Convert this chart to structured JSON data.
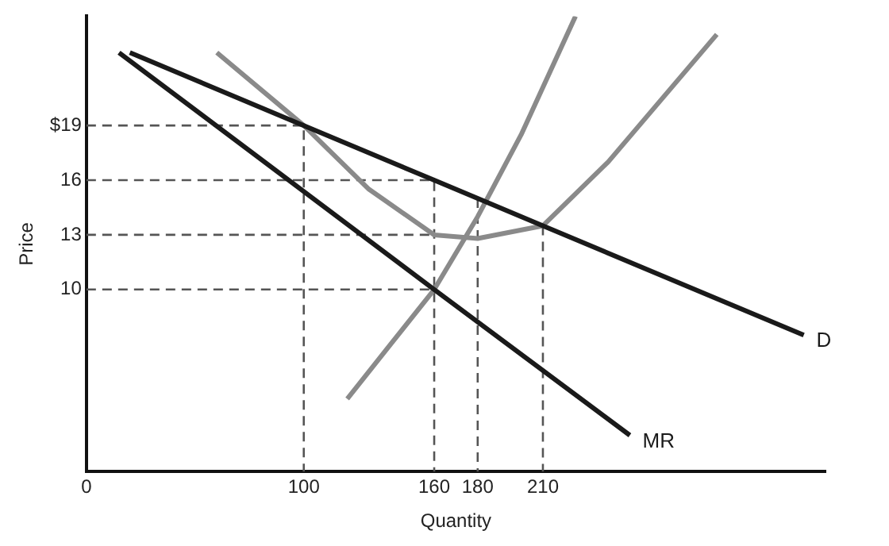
{
  "chart_data": {
    "type": "line",
    "xlabel": "Quantity",
    "ylabel": "Price",
    "xlim": [
      0,
      340
    ],
    "ylim": [
      0,
      25
    ],
    "xticks": [
      0,
      100,
      160,
      180,
      210
    ],
    "yticks": [
      10,
      13,
      16,
      {
        "value": 19,
        "label": "$19"
      }
    ],
    "grid": false,
    "legend": false,
    "marker": "none",
    "series": [
      {
        "name": "D",
        "color": "#1a1a1a",
        "x": [
          20,
          100,
          160,
          210,
          330
        ],
        "values": [
          23,
          19,
          16,
          13.5,
          7.5
        ]
      },
      {
        "name": "MR",
        "color": "#1a1a1a",
        "x": [
          15,
          160,
          250
        ],
        "values": [
          23,
          10,
          2
        ]
      },
      {
        "color": "#8a8a8a",
        "x": [
          60,
          100,
          130,
          160,
          180,
          210,
          240,
          290
        ],
        "values": [
          23,
          19,
          15.5,
          13,
          12.8,
          13.5,
          17,
          24
        ]
      },
      {
        "color": "#8a8a8a",
        "x": [
          120,
          140,
          160,
          180,
          200,
          225
        ],
        "values": [
          4,
          7,
          10,
          14,
          18.5,
          25
        ]
      },
      {
        "color": "#555555",
        "line_style": "dashed",
        "x": [
          0,
          100,
          100
        ],
        "values": [
          19,
          19,
          0
        ]
      },
      {
        "color": "#555555",
        "line_style": "dashed",
        "x": [
          0,
          160,
          160
        ],
        "values": [
          16,
          16,
          0
        ]
      },
      {
        "color": "#555555",
        "line_style": "dashed",
        "x": [
          0,
          160
        ],
        "values": [
          13,
          13
        ]
      },
      {
        "color": "#555555",
        "line_style": "dashed",
        "x": [
          0,
          160
        ],
        "values": [
          10,
          10
        ]
      },
      {
        "color": "#555555",
        "line_style": "dashed",
        "x": [
          180,
          180
        ],
        "values": [
          15,
          0
        ]
      },
      {
        "color": "#555555",
        "line_style": "dashed",
        "x": [
          210,
          210
        ],
        "values": [
          13.5,
          0
        ]
      }
    ]
  }
}
